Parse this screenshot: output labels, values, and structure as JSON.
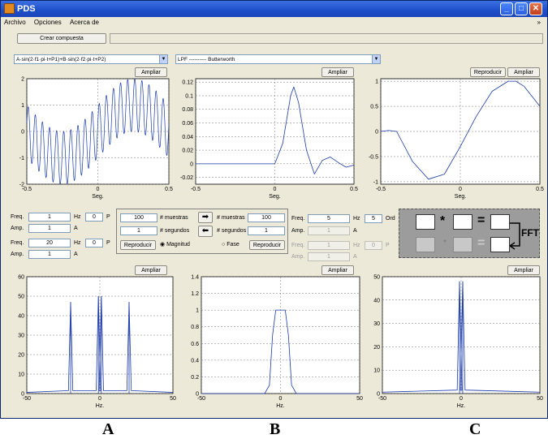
{
  "window": {
    "title": "PDS"
  },
  "menu": [
    "Archivo",
    "Opciones",
    "Acerca de"
  ],
  "toolbar": {
    "crear_compuesta": "Crear compuesta"
  },
  "dropdowns": {
    "signal": "A·sin(2·f1·pi·t+P1)+B·sin(2·f2·pi·t+P2)",
    "filter": "LPF ---------- Butterworth"
  },
  "buttons": {
    "ampliar": "Ampliar",
    "reproducir": "Reproducir"
  },
  "params": {
    "freq_label": "Freq.",
    "amp_label": "Amp.",
    "hz": "Hz",
    "p": "P",
    "a": "A",
    "ord": "Ord",
    "f1": "1",
    "p1": "0",
    "a1": "1",
    "f2": "20",
    "p2": "0",
    "a2": "1",
    "muestras_in": "100",
    "segundos_in": "1",
    "muestras_out": "100",
    "segundos_out": "1",
    "muestras_label": "# muestras",
    "segundos_label": "# segundos",
    "magnitud": "Magnitud",
    "fase": "Fase",
    "filt_f1": "5",
    "filt_ord": "5",
    "filt_a1": "1",
    "filt_f2": "1",
    "filt_p2": "0",
    "filt_a2": "1"
  },
  "fft": {
    "star": "*",
    "eq": "=",
    "label": "FFT"
  },
  "panels": {
    "A": "A",
    "B": "B",
    "C": "C"
  },
  "chart_data": [
    {
      "type": "line",
      "xlabel": "Seg.",
      "xlim": [
        -0.5,
        0.5
      ],
      "ylim": [
        -2,
        2
      ],
      "xticks": [
        "-0.5",
        "0",
        "0.5"
      ],
      "yticks": [
        "2",
        "1",
        "0",
        "-1",
        "-2"
      ],
      "series": [
        {
          "values_desc": "sin(2*pi*1*t)+sin(2*pi*20*t)",
          "x": [
            -0.5,
            0.5
          ]
        }
      ]
    },
    {
      "type": "line",
      "xlabel": "Seg.",
      "xlim": [
        -0.5,
        0.5
      ],
      "ylim": [
        -0.03,
        0.125
      ],
      "xticks": [
        "-0.5",
        "0",
        "0.5"
      ],
      "yticks": [
        "0.12",
        "0.1",
        "0.08",
        "0.06",
        "0.04",
        "0.02",
        "0",
        "-0.02"
      ],
      "series": [
        {
          "x": [
            -0.5,
            0,
            0.05,
            0.1,
            0.12,
            0.15,
            0.2,
            0.25,
            0.3,
            0.35,
            0.4,
            0.45,
            0.5
          ],
          "y": [
            0,
            0,
            0.03,
            0.1,
            0.113,
            0.09,
            0.02,
            -0.015,
            0.005,
            0.01,
            0.002,
            -0.005,
            -0.002
          ]
        }
      ]
    },
    {
      "type": "line",
      "xlabel": "Seg.",
      "xlim": [
        -0.5,
        0.5
      ],
      "ylim": [
        -1.05,
        1.05
      ],
      "xticks": [
        "-0.5",
        "0",
        "0.5"
      ],
      "yticks": [
        "1",
        "0.5",
        "0",
        "-0.5",
        "-1"
      ],
      "series": [
        {
          "x": [
            -0.5,
            -0.45,
            -0.4,
            -0.3,
            -0.2,
            -0.1,
            0,
            0.1,
            0.2,
            0.3,
            0.35,
            0.4,
            0.45,
            0.5
          ],
          "y": [
            0,
            0.02,
            0,
            -0.6,
            -0.95,
            -0.85,
            -0.3,
            0.3,
            0.8,
            1.0,
            1.0,
            0.9,
            0.7,
            0.5
          ]
        }
      ]
    },
    {
      "type": "line",
      "xlabel": "Hz.",
      "xlim": [
        -50,
        50
      ],
      "ylim": [
        0,
        60
      ],
      "xticks": [
        "-50",
        "0",
        "50"
      ],
      "yticks": [
        "60",
        "50",
        "40",
        "30",
        "20",
        "10",
        "0"
      ],
      "series": [
        {
          "peaks": [
            [
              -20,
              47
            ],
            [
              -1,
              50
            ],
            [
              1,
              50
            ],
            [
              20,
              47
            ]
          ]
        }
      ]
    },
    {
      "type": "line",
      "xlabel": "Hz.",
      "xlim": [
        -50,
        50
      ],
      "ylim": [
        0,
        1.4
      ],
      "xticks": [
        "-50",
        "0",
        "50"
      ],
      "yticks": [
        "1.4",
        "1.2",
        "1",
        "0.8",
        "0.6",
        "0.4",
        "0.2",
        "0"
      ],
      "series": [
        {
          "x": [
            -50,
            -10,
            -7,
            -5,
            -3,
            0,
            3,
            5,
            7,
            10,
            50
          ],
          "y": [
            0,
            0,
            0.1,
            0.7,
            1,
            1,
            1,
            0.7,
            0.1,
            0,
            0
          ]
        }
      ]
    },
    {
      "type": "line",
      "xlabel": "Hz.",
      "xlim": [
        -50,
        50
      ],
      "ylim": [
        0,
        50
      ],
      "xticks": [
        "-50",
        "0",
        "50"
      ],
      "yticks": [
        "50",
        "40",
        "30",
        "20",
        "10",
        "0"
      ],
      "series": [
        {
          "peaks": [
            [
              -1,
              48
            ],
            [
              1,
              48
            ]
          ]
        }
      ]
    }
  ]
}
